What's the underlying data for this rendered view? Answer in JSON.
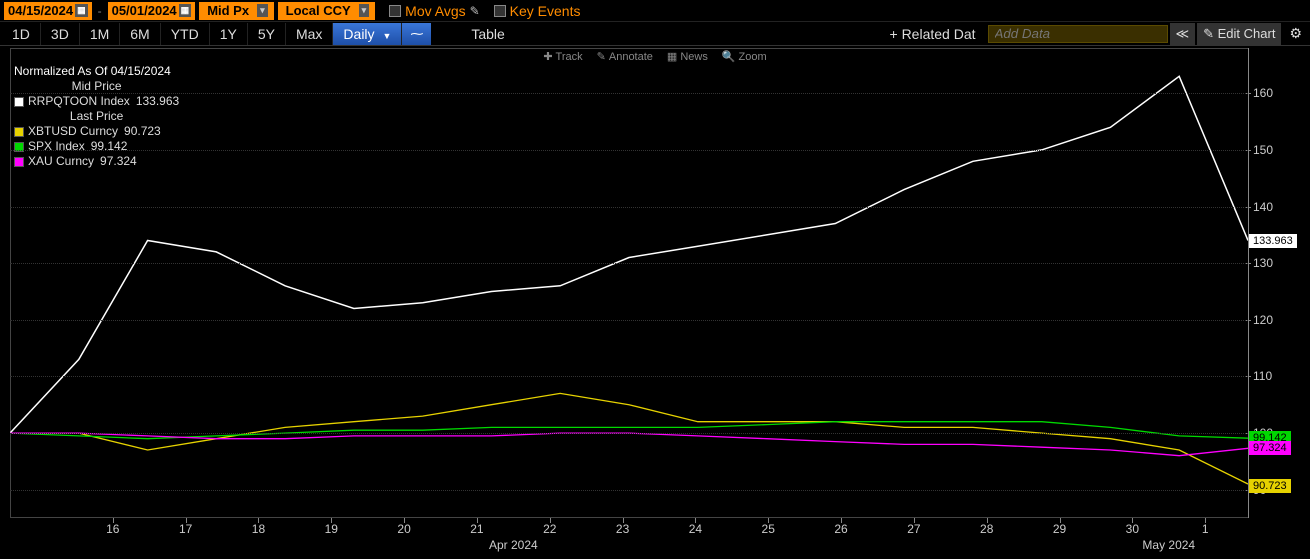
{
  "toolbar1": {
    "date_from": "04/15/2024",
    "date_to": "05/01/2024",
    "mid_px": "Mid Px",
    "ccy": "Local CCY",
    "mov_avgs": "Mov Avgs",
    "key_events": "Key Events"
  },
  "toolbar2": {
    "periods": [
      "1D",
      "3D",
      "1M",
      "6M",
      "YTD",
      "1Y",
      "5Y",
      "Max"
    ],
    "daily": "Daily",
    "table": "Table",
    "related": "Related Dat",
    "add_data_placeholder": "Add Data",
    "edit_chart": "Edit Chart"
  },
  "minirow": {
    "track": "Track",
    "annotate": "Annotate",
    "news": "News",
    "zoom": "Zoom"
  },
  "legend": {
    "normalized": "Normalized As Of 04/15/2024",
    "mid_price": "Mid Price",
    "rrp_name": "RRPQTOON Index",
    "rrp_val": "133.963",
    "last_price": "Last Price",
    "series": [
      {
        "name": "XBTUSD Curncy",
        "val": "90.723",
        "color": "#e6d200"
      },
      {
        "name": "SPX Index",
        "val": "99.142",
        "color": "#00d800"
      },
      {
        "name": "XAU Curncy",
        "val": "97.324",
        "color": "#ff00ff"
      }
    ],
    "rrp_color": "#ffffff"
  },
  "chart": {
    "type": "line",
    "background_color": "#000000",
    "grid_color": "#333333",
    "text_color": "#cccccc",
    "ylim": [
      85,
      168
    ],
    "yticks": [
      90,
      100,
      110,
      120,
      130,
      140,
      150,
      160
    ],
    "flags": [
      {
        "value": 133.963,
        "label": "133.963",
        "bg": "#ffffff",
        "fg": "#000000"
      },
      {
        "value": 99.142,
        "label": "99.142",
        "bg": "#00d800",
        "fg": "#000000"
      },
      {
        "value": 97.324,
        "label": "97.324",
        "bg": "#ff00ff",
        "fg": "#000000"
      },
      {
        "value": 90.723,
        "label": "90.723",
        "bg": "#e6d200",
        "fg": "#000000"
      }
    ],
    "x_categories": [
      "16",
      "17",
      "18",
      "19",
      "20",
      "21",
      "22",
      "23",
      "24",
      "25",
      "26",
      "27",
      "28",
      "29",
      "30",
      "1"
    ],
    "x_month_labels": [
      {
        "index_between": [
          5,
          6
        ],
        "text": "Apr 2024"
      },
      {
        "index_between": [
          14,
          15
        ],
        "text": "May 2024"
      }
    ],
    "series": [
      {
        "name": "RRPQTOON Index",
        "color": "#ffffff",
        "width": 1.5,
        "values": [
          100,
          113,
          134,
          132,
          126,
          122,
          123,
          125,
          126,
          131,
          133,
          135,
          137,
          143,
          148,
          150,
          154,
          163,
          134
        ]
      },
      {
        "name": "XBTUSD Curncy",
        "color": "#e6d200",
        "width": 1.3,
        "values": [
          100,
          100,
          97,
          99,
          101,
          102,
          103,
          105,
          107,
          105,
          102,
          102,
          102,
          101,
          101,
          100,
          99,
          97,
          91
        ]
      },
      {
        "name": "SPX Index",
        "color": "#00d800",
        "width": 1.3,
        "values": [
          100,
          99.5,
          99,
          99.5,
          100,
          100.5,
          100.5,
          101,
          101,
          101,
          101,
          101.5,
          102,
          102,
          102,
          102,
          101,
          99.5,
          99.1
        ]
      },
      {
        "name": "XAU Curncy",
        "color": "#ff00ff",
        "width": 1.3,
        "values": [
          100,
          100,
          99.5,
          99,
          99,
          99.5,
          99.5,
          99.5,
          100,
          100,
          99.5,
          99,
          98.5,
          98,
          98,
          97.5,
          97,
          96,
          97.3
        ]
      }
    ]
  }
}
